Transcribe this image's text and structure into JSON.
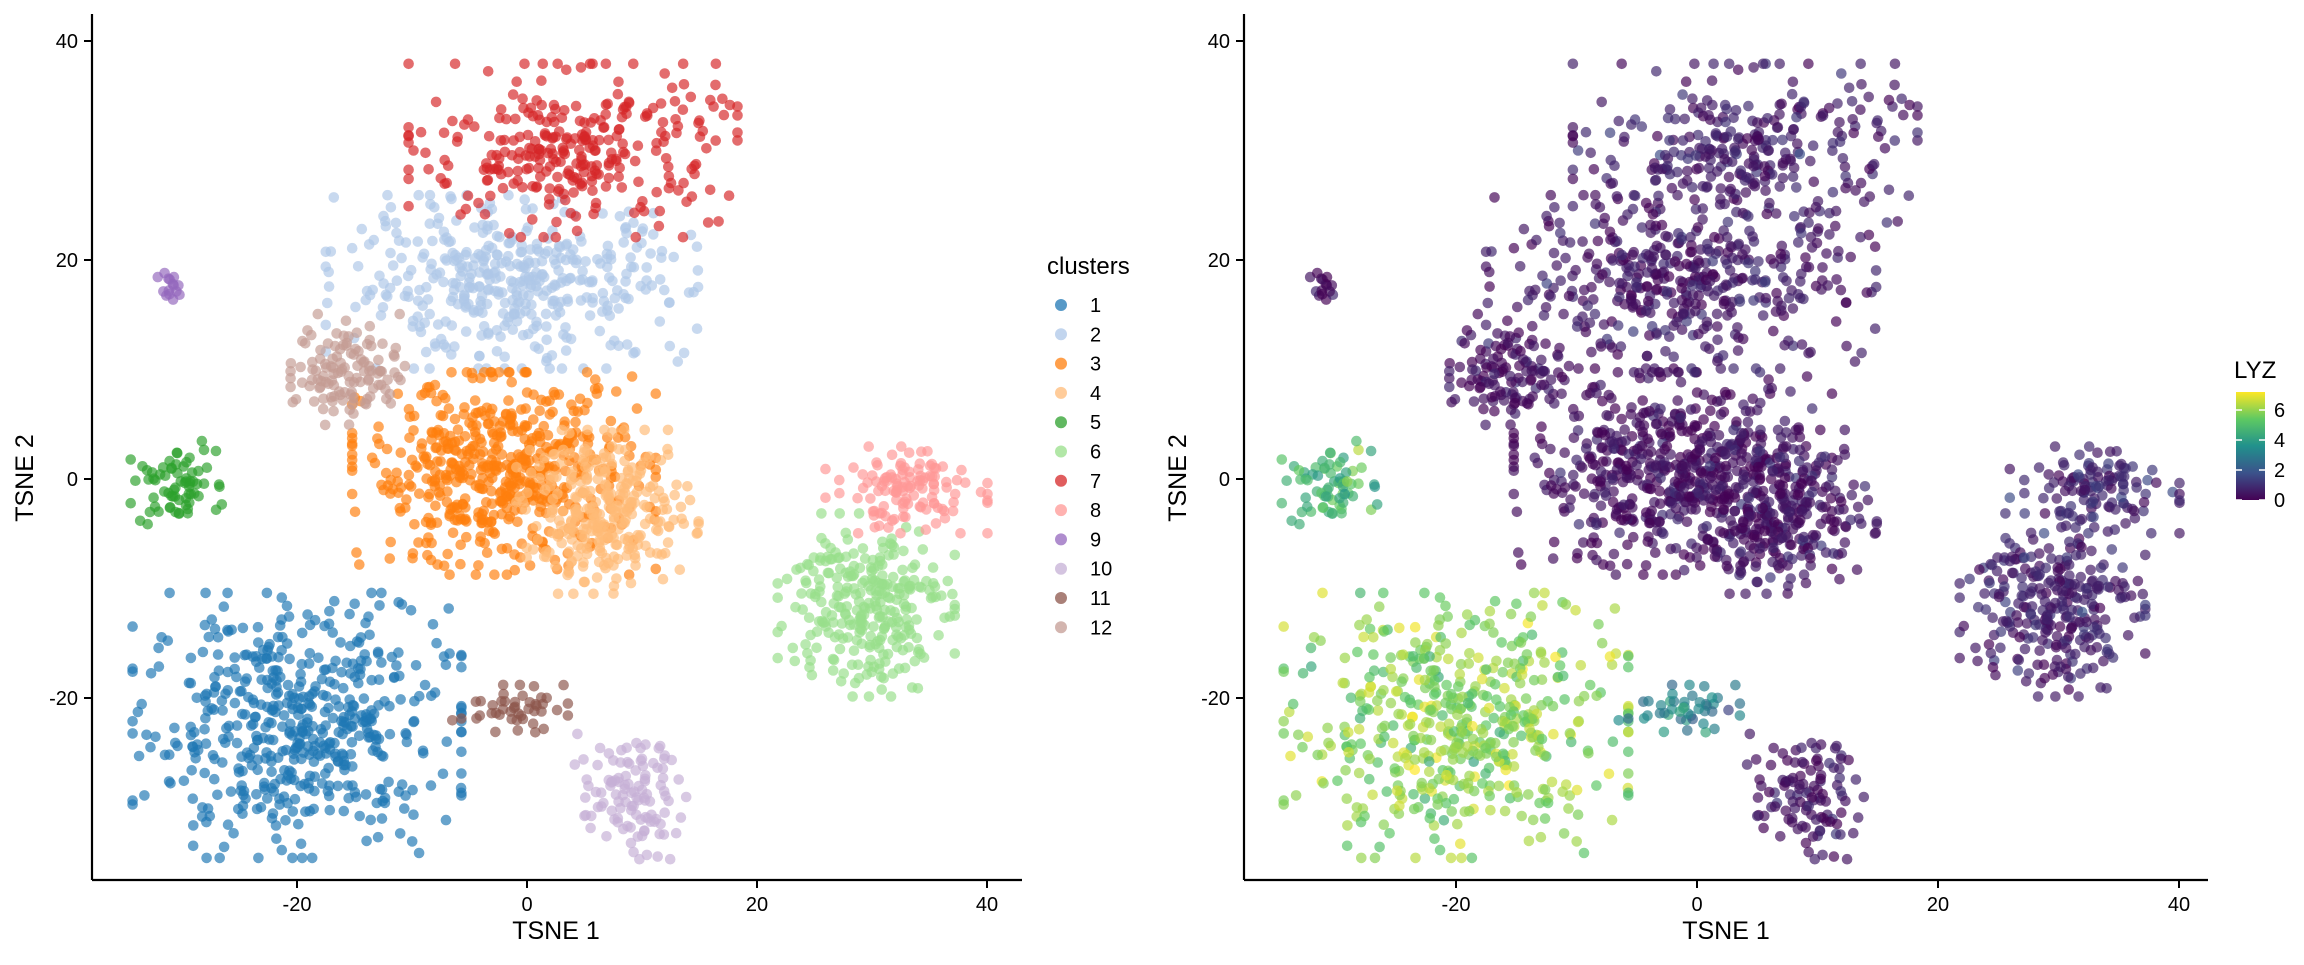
{
  "chart_data": [
    {
      "type": "scatter",
      "xlabel": "TSNE 1",
      "ylabel": "TSNE 2",
      "xlim": [
        -38,
        43
      ],
      "ylim": [
        -36,
        43
      ],
      "xticks": [
        -20,
        0,
        20,
        40
      ],
      "yticks": [
        -20,
        0,
        20,
        40
      ],
      "grid": false,
      "legend": {
        "title": "clusters",
        "position": "right",
        "entries": [
          {
            "label": "1",
            "color": "#1f77b4"
          },
          {
            "label": "2",
            "color": "#aec7e8"
          },
          {
            "label": "3",
            "color": "#ff7f0e"
          },
          {
            "label": "4",
            "color": "#ffbb78"
          },
          {
            "label": "5",
            "color": "#2ca02c"
          },
          {
            "label": "6",
            "color": "#98df8a"
          },
          {
            "label": "7",
            "color": "#d62728"
          },
          {
            "label": "8",
            "color": "#ff9896"
          },
          {
            "label": "9",
            "color": "#9467bd"
          },
          {
            "label": "10",
            "color": "#c5b0d5"
          },
          {
            "label": "11",
            "color": "#8c564b"
          },
          {
            "label": "12",
            "color": "#c49c94"
          }
        ]
      },
      "clusters": [
        {
          "name": "1",
          "center": [
            -20,
            -22.5
          ],
          "spread": [
            6.5,
            5.5
          ],
          "n": 520
        },
        {
          "name": "2",
          "center": [
            -1,
            18
          ],
          "spread": [
            7.5,
            3.6
          ],
          "n": 420
        },
        {
          "name": "3",
          "center": [
            -2,
            0.5
          ],
          "spread": [
            6.0,
            4.2
          ],
          "n": 560
        },
        {
          "name": "4",
          "center": [
            7,
            -3
          ],
          "spread": [
            3.6,
            3.4
          ],
          "n": 280
        },
        {
          "name": "5",
          "center": [
            -30.5,
            -0.5
          ],
          "spread": [
            1.8,
            1.8
          ],
          "n": 70
        },
        {
          "name": "6",
          "center": [
            29.5,
            -11.5
          ],
          "spread": [
            3.5,
            3.8
          ],
          "n": 280
        },
        {
          "name": "7",
          "center": [
            4,
            30
          ],
          "spread": [
            6.5,
            3.6
          ],
          "n": 300
        },
        {
          "name": "8",
          "center": [
            33,
            -1
          ],
          "spread": [
            3.2,
            1.8
          ],
          "n": 120
        },
        {
          "name": "9",
          "center": [
            -31,
            17.5
          ],
          "spread": [
            0.5,
            0.7
          ],
          "n": 15
        },
        {
          "name": "10",
          "center": [
            9,
            -29
          ],
          "spread": [
            2.2,
            2.6
          ],
          "n": 110
        },
        {
          "name": "11",
          "center": [
            -1.5,
            -21
          ],
          "spread": [
            2.3,
            1.0
          ],
          "n": 45
        },
        {
          "name": "12",
          "center": [
            -15.5,
            10
          ],
          "spread": [
            2.3,
            2.3
          ],
          "n": 120
        }
      ]
    },
    {
      "type": "scatter",
      "xlabel": "TSNE 1",
      "ylabel": "TSNE 2",
      "xlim": [
        -38,
        43
      ],
      "ylim": [
        -36,
        43
      ],
      "xticks": [
        -20,
        0,
        20,
        40
      ],
      "yticks": [
        -20,
        0,
        20,
        40
      ],
      "grid": false,
      "color_variable": "LYZ",
      "colorbar": {
        "title": "LYZ",
        "position": "right",
        "range": [
          0,
          7.2
        ],
        "ticks": [
          0,
          2,
          4,
          6
        ],
        "colormap": "viridis"
      },
      "cluster_mean_LYZ": {
        "1": 5.9,
        "2": 0.4,
        "3": 0.3,
        "4": 0.4,
        "5": 4.8,
        "6": 0.6,
        "7": 0.5,
        "8": 0.8,
        "9": 0.3,
        "10": 0.4,
        "11": 3.3,
        "12": 0.3
      }
    }
  ]
}
